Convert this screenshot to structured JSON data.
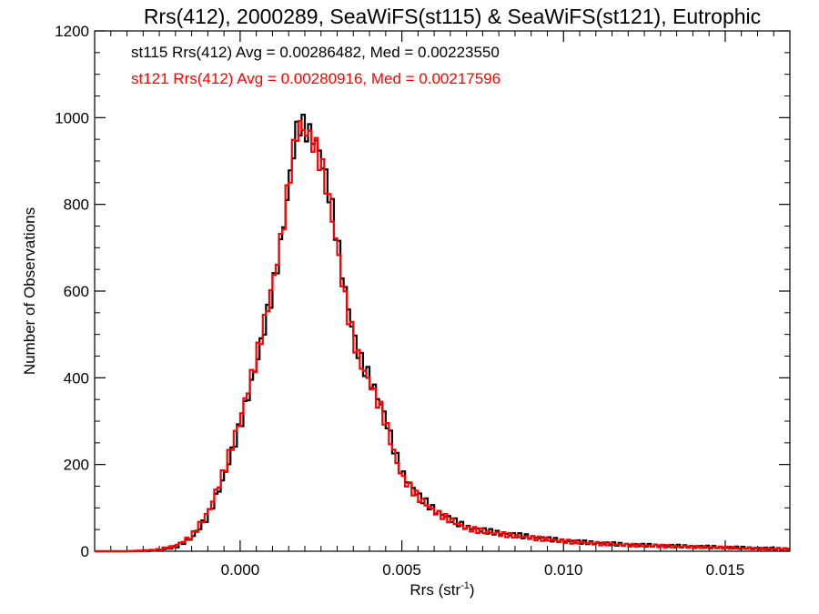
{
  "chart_data": {
    "type": "histogram",
    "title": "Rrs(412), 2000289, SeaWiFS(st115) & SeaWiFS(st121), Eutrophic",
    "xlabel": "Rrs (str",
    "xlabel_sup": "-1",
    "xlabel_close": ")",
    "ylabel": "Number of Observations",
    "xlim": [
      -0.0045,
      0.017
    ],
    "ylim": [
      0,
      1200
    ],
    "x_ticks": [
      0.0,
      0.005,
      0.01,
      0.015
    ],
    "x_tick_labels": [
      "0.000",
      "0.005",
      "0.010",
      "0.015"
    ],
    "y_ticks": [
      0,
      200,
      400,
      600,
      800,
      1000,
      1200
    ],
    "y_tick_labels": [
      "0",
      "200",
      "400",
      "600",
      "800",
      "1000",
      "1200"
    ],
    "grid": false,
    "legend_placement": "top-left",
    "series": [
      {
        "name": "st115",
        "color": "#000000",
        "label": "st115 Rrs(412) Avg = 0.00286482, Med = 0.00223550",
        "points": [
          [
            -0.0045,
            0
          ],
          [
            -0.0035,
            0
          ],
          [
            -0.003,
            1
          ],
          [
            -0.0025,
            3
          ],
          [
            -0.002,
            10
          ],
          [
            -0.0015,
            30
          ],
          [
            -0.001,
            80
          ],
          [
            -0.0005,
            170
          ],
          [
            0.0,
            290
          ],
          [
            0.0005,
            430
          ],
          [
            0.001,
            600
          ],
          [
            0.0012,
            680
          ],
          [
            0.0014,
            780
          ],
          [
            0.0016,
            900
          ],
          [
            0.0018,
            990
          ],
          [
            0.002,
            975
          ],
          [
            0.0022,
            960
          ],
          [
            0.0024,
            935
          ],
          [
            0.0026,
            880
          ],
          [
            0.0028,
            810
          ],
          [
            0.003,
            720
          ],
          [
            0.0032,
            620
          ],
          [
            0.0034,
            540
          ],
          [
            0.0036,
            470
          ],
          [
            0.0038,
            430
          ],
          [
            0.004,
            400
          ],
          [
            0.0042,
            365
          ],
          [
            0.0044,
            330
          ],
          [
            0.0046,
            280
          ],
          [
            0.0048,
            225
          ],
          [
            0.005,
            180
          ],
          [
            0.0055,
            130
          ],
          [
            0.006,
            95
          ],
          [
            0.0065,
            75
          ],
          [
            0.007,
            55
          ],
          [
            0.008,
            42
          ],
          [
            0.009,
            33
          ],
          [
            0.01,
            24
          ],
          [
            0.011,
            19
          ],
          [
            0.012,
            15
          ],
          [
            0.013,
            13
          ],
          [
            0.014,
            11
          ],
          [
            0.015,
            9
          ],
          [
            0.016,
            7
          ],
          [
            0.017,
            5
          ]
        ]
      },
      {
        "name": "st121",
        "color": "#ff0000",
        "label": "st121 Rrs(412) Avg = 0.00280916, Med = 0.00217596",
        "points": [
          [
            -0.0045,
            0
          ],
          [
            -0.0035,
            0
          ],
          [
            -0.003,
            1
          ],
          [
            -0.0025,
            4
          ],
          [
            -0.002,
            12
          ],
          [
            -0.0015,
            35
          ],
          [
            -0.001,
            88
          ],
          [
            -0.0005,
            185
          ],
          [
            0.0,
            305
          ],
          [
            0.0005,
            445
          ],
          [
            0.001,
            615
          ],
          [
            0.0012,
            690
          ],
          [
            0.0014,
            790
          ],
          [
            0.0016,
            905
          ],
          [
            0.0018,
            985
          ],
          [
            0.002,
            970
          ],
          [
            0.0022,
            950
          ],
          [
            0.0024,
            920
          ],
          [
            0.0026,
            865
          ],
          [
            0.0028,
            790
          ],
          [
            0.003,
            700
          ],
          [
            0.0032,
            600
          ],
          [
            0.0034,
            525
          ],
          [
            0.0036,
            460
          ],
          [
            0.0038,
            420
          ],
          [
            0.004,
            390
          ],
          [
            0.0042,
            355
          ],
          [
            0.0044,
            320
          ],
          [
            0.0046,
            270
          ],
          [
            0.0048,
            215
          ],
          [
            0.005,
            172
          ],
          [
            0.0055,
            125
          ],
          [
            0.006,
            92
          ],
          [
            0.0065,
            72
          ],
          [
            0.007,
            53
          ],
          [
            0.008,
            40
          ],
          [
            0.009,
            31
          ],
          [
            0.01,
            23
          ],
          [
            0.011,
            18
          ],
          [
            0.012,
            14
          ],
          [
            0.013,
            12
          ],
          [
            0.014,
            10
          ],
          [
            0.015,
            8
          ],
          [
            0.016,
            6
          ],
          [
            0.017,
            5
          ]
        ]
      }
    ]
  }
}
